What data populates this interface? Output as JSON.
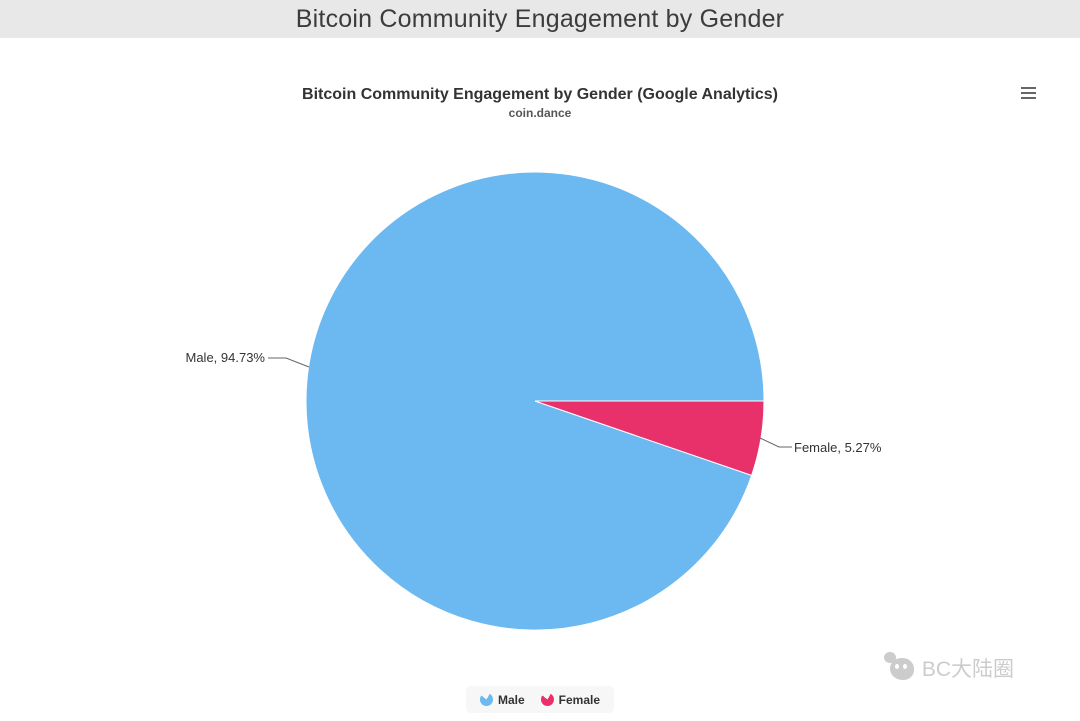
{
  "page": {
    "title": "Bitcoin Community Engagement by Gender"
  },
  "chart_data": {
    "type": "pie",
    "title": "Bitcoin Community Engagement by Gender (Google Analytics)",
    "subtitle": "coin.dance",
    "unit": "%",
    "legend_position": "bottom",
    "series": [
      {
        "name": "Male",
        "value": 94.73,
        "color": "#6cb8f0",
        "label": "Male, 94.73%"
      },
      {
        "name": "Female",
        "value": 5.27,
        "color": "#e8316b",
        "label": "Female, 5.27%"
      }
    ]
  },
  "watermark": {
    "text": "BC大陆圈"
  }
}
